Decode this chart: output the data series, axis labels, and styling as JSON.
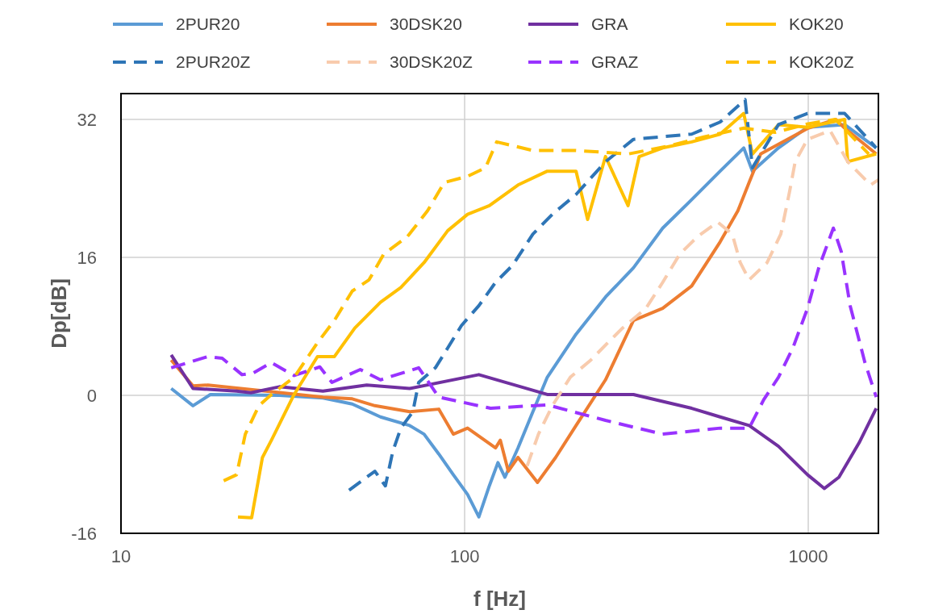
{
  "chart_data": {
    "type": "line",
    "xlabel": "f [Hz]",
    "ylabel": "Dp[dB]",
    "log": "x",
    "xlim": [
      10,
      1600
    ],
    "xticks": [
      10,
      100,
      1000
    ],
    "ylim": [
      -16,
      35
    ],
    "yticks": [
      -16,
      0,
      16,
      32
    ],
    "grid": true,
    "legend": "top",
    "marker": "none",
    "series": [
      {
        "name": "2PUR20",
        "color": "#5b9bd5",
        "line_style": "solid",
        "x": [
          14,
          16.2,
          18.2,
          28.9,
          38.7,
          47.1,
          56.9,
          69.2,
          76.2,
          84.1,
          92.7,
          102,
          110,
          118,
          125,
          131,
          143,
          158,
          174,
          211,
          257,
          310,
          377,
          458,
          554,
          649,
          688,
          819,
          995,
          1276,
          1577
        ],
        "values": [
          0.8,
          -1.2,
          0.1,
          0,
          -0.3,
          -1,
          -2.5,
          -3.5,
          -4.5,
          -6.8,
          -9.2,
          -11.5,
          -14.1,
          -10.5,
          -7.8,
          -9.5,
          -6.1,
          -1.9,
          2.1,
          7.1,
          11.4,
          14.8,
          19.4,
          22.7,
          26,
          28.7,
          26,
          28.7,
          31.1,
          31.4,
          28.7
        ]
      },
      {
        "name": "30DSK20",
        "color": "#ed7d31",
        "line_style": "solid",
        "x": [
          14,
          16.2,
          17.9,
          26.4,
          38.7,
          47.1,
          54.8,
          69.2,
          84.1,
          92.7,
          102,
          123,
          127,
          134,
          143,
          163,
          184,
          211,
          257,
          310,
          377,
          458,
          554,
          624,
          673,
          727,
          1000,
          1202,
          1276,
          1577
        ],
        "values": [
          4.1,
          1.1,
          1.2,
          0.5,
          -0.2,
          -0.4,
          -1.2,
          -1.9,
          -1.6,
          -4.5,
          -3.8,
          -6.1,
          -5.2,
          -8.8,
          -7.2,
          -10.1,
          -7.2,
          -3.5,
          1.8,
          8.7,
          10.1,
          12.7,
          17.8,
          21.4,
          24.7,
          28,
          31,
          32,
          31,
          28
        ]
      },
      {
        "name": "GRA",
        "color": "#7030a0",
        "line_style": "solid",
        "x": [
          14,
          16.2,
          21.7,
          23.9,
          28.9,
          38.7,
          51.9,
          69.2,
          110,
          174,
          310,
          458,
          554,
          673,
          819,
          995,
          1114,
          1228,
          1406,
          1577
        ],
        "values": [
          4.7,
          0.8,
          0.5,
          0.3,
          1,
          0.5,
          1.2,
          0.8,
          2.4,
          0.1,
          0.1,
          -1.5,
          -2.5,
          -3.5,
          -5.9,
          -9.2,
          -10.8,
          -9.5,
          -5.5,
          -1.5
        ]
      },
      {
        "name": "KOK20",
        "color": "#ffc000",
        "line_style": "solid",
        "x": [
          21.9,
          24,
          25.8,
          27.4,
          31.9,
          37.3,
          41.8,
          47.9,
          56.9,
          65.2,
          76.2,
          89.3,
          102,
          118,
          143,
          174,
          211,
          228,
          257,
          299,
          322,
          377,
          458,
          554,
          649,
          688,
          819,
          995,
          1276,
          1303,
          1577
        ],
        "values": [
          -14.1,
          -14.2,
          -7.2,
          -5.2,
          0.1,
          4.5,
          4.5,
          7.8,
          10.8,
          12.5,
          15.4,
          19.1,
          21,
          22,
          24.4,
          26,
          26,
          20.4,
          27.7,
          22,
          27.7,
          28.7,
          29.4,
          30.3,
          32.7,
          28,
          31.4,
          31.1,
          32,
          27.1,
          28
        ]
      },
      {
        "name": "2PUR20Z",
        "color": "#2e75b6",
        "line_style": "dashed",
        "x": [
          46.1,
          54.8,
          58.8,
          61.8,
          65.2,
          70.7,
          73.5,
          82.2,
          89.3,
          97.9,
          110,
          123,
          138,
          158,
          180,
          211,
          257,
          310,
          377,
          458,
          554,
          655,
          688,
          819,
          995,
          1276,
          1577
        ],
        "values": [
          -11,
          -8.8,
          -10.5,
          -6.5,
          -3.8,
          -1.9,
          1.5,
          3.2,
          5.5,
          8.1,
          10.4,
          13.1,
          15.1,
          18.7,
          21,
          23.3,
          27.1,
          29.7,
          30,
          30.3,
          31.7,
          34.3,
          26.4,
          31.4,
          32.7,
          32.7,
          28.7
        ]
      },
      {
        "name": "30DSK20Z",
        "color": "#f8cbad",
        "line_style": "dashed",
        "x": [
          152,
          164,
          180,
          203,
          233,
          261,
          288,
          337,
          377,
          423,
          476,
          545,
          601,
          634,
          673,
          759,
          832,
          883,
          916,
          995,
          1158,
          1303,
          1518,
          1600
        ],
        "values": [
          -8.2,
          -4.5,
          -1.2,
          2.1,
          4.1,
          6.1,
          7.8,
          10.1,
          13.1,
          16.4,
          18.4,
          20.1,
          18.7,
          15.4,
          13.4,
          15.4,
          18.7,
          23.7,
          27.1,
          29.7,
          30.7,
          27.1,
          24.4,
          25
        ]
      },
      {
        "name": "GRAZ",
        "color": "#9933ff",
        "line_style": "dashed",
        "x": [
          14,
          17.9,
          19.7,
          22.5,
          24.3,
          27.4,
          31.9,
          37.9,
          41.1,
          49.7,
          56.9,
          73.5,
          84.1,
          119,
          174,
          257,
          377,
          554,
          673,
          742,
          819,
          902,
          995,
          1073,
          1183,
          1247,
          1324,
          1462,
          1577
        ],
        "values": [
          3.2,
          4.5,
          4.3,
          2.4,
          2.6,
          3.8,
          2.3,
          3.3,
          1.5,
          3,
          1.8,
          3.2,
          -0.2,
          -1.5,
          -1.1,
          -2.9,
          -4.5,
          -3.8,
          -3.8,
          -0.5,
          2.1,
          5.5,
          10.1,
          14.8,
          19.4,
          16.7,
          10.4,
          3.8,
          -0.2
        ]
      },
      {
        "name": "KOK20Z",
        "color": "#ffc000",
        "line_style": "dashed",
        "x": [
          19.9,
          21.7,
          23,
          25.2,
          27.4,
          31.9,
          37.3,
          41.8,
          47.1,
          52.7,
          58.2,
          68.1,
          78,
          87.3,
          102,
          115,
          124,
          158,
          211,
          300,
          400,
          500,
          650,
          800,
          1000,
          1200,
          1500
        ],
        "values": [
          -9.9,
          -9.2,
          -4.5,
          -1.2,
          0.1,
          2.1,
          6.1,
          8.7,
          12.1,
          13.4,
          16.4,
          18.4,
          21.4,
          24.7,
          25.4,
          26.4,
          29.4,
          28.4,
          28.4,
          28,
          29,
          30,
          31,
          30.5,
          31.5,
          32,
          28
        ]
      }
    ]
  }
}
